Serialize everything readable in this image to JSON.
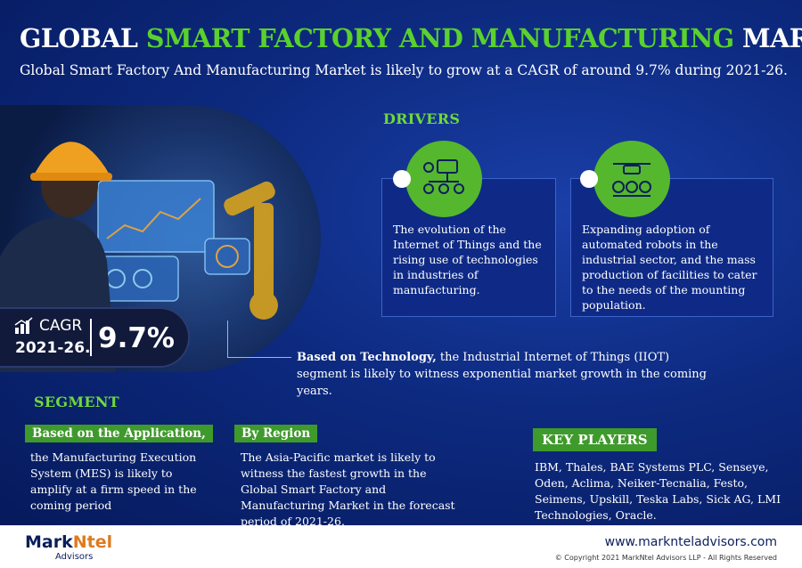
{
  "header": {
    "title_prefix": "GLOBAL ",
    "title_highlight": "SMART FACTORY AND MANUFACTURING",
    "title_suffix": " MARKET",
    "subtitle": "Global Smart Factory And Manufacturing Market is likely to grow at a CAGR of around 9.7% during 2021-26."
  },
  "cagr": {
    "label": "CAGR",
    "period": "2021-26.",
    "value": "9.7%"
  },
  "drivers": {
    "title": "DRIVERS",
    "items": [
      {
        "icon": "iot-network-icon",
        "text": "The evolution of the Internet of Things and the rising use of technologies in industries of manufacturing."
      },
      {
        "icon": "robot-drone-icon",
        "text": "Expanding adoption of automated robots in the industrial sector, and the mass production of facilities to cater to the needs of the mounting population."
      }
    ]
  },
  "technology": {
    "lead": "Based on Technology,",
    "text": " the Industrial Internet of Things (IIOT) segment is likely to witness exponential market growth in the coming years."
  },
  "segment": {
    "title": "SEGMENT",
    "application": {
      "tag": "Based on the Application,",
      "text": "the Manufacturing Execution System (MES) is likely to amplify at a firm speed in the coming period"
    },
    "region": {
      "tag": "By Region",
      "text": "The Asia-Pacific market is likely to witness the fastest growth in the Global Smart Factory and Manufacturing Market in the forecast period of 2021-26."
    }
  },
  "key_players": {
    "tag_key": "KEY",
    "tag_rest": " PLAYERS",
    "text": "IBM, Thales, BAE Systems PLC, Senseye, Oden, Aclima, Neiker-Tecnalia, Festo, Seimens, Upskill, Teska Labs, Sick AG, LMI Technologies, Oracle."
  },
  "footer": {
    "logo_part1": "Mark",
    "logo_part2": "Ntel",
    "logo_sub": "Advisors",
    "url": "www.marknteladvisors.com",
    "copyright": "© Copyright 2021 MarkNtel Advisors LLP - All Rights Reserved"
  },
  "colors": {
    "accent_green": "#5ad12c",
    "navy": "#0b1f5c",
    "banner_blue": "#0d2a80"
  }
}
